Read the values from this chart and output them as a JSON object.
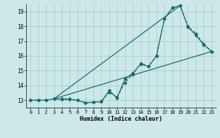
{
  "xlabel": "Humidex (Indice chaleur)",
  "bg_color": "#cce8e8",
  "grid_color": "#aacccc",
  "line_color": "#1a6b6b",
  "xlim": [
    -0.5,
    23.5
  ],
  "ylim": [
    12.5,
    19.5
  ],
  "yticks": [
    13,
    14,
    15,
    16,
    17,
    18,
    19
  ],
  "xticks": [
    0,
    1,
    2,
    3,
    4,
    5,
    6,
    7,
    8,
    9,
    10,
    11,
    12,
    13,
    14,
    15,
    16,
    17,
    18,
    19,
    20,
    21,
    22,
    23
  ],
  "curve1_x": [
    0,
    1,
    2,
    3,
    4,
    5,
    6,
    7,
    8,
    9,
    10,
    11,
    12,
    13,
    14,
    15,
    16,
    17,
    18,
    19,
    20,
    21,
    22,
    23
  ],
  "curve1_y": [
    13.0,
    13.0,
    13.0,
    13.1,
    13.1,
    13.1,
    13.0,
    12.82,
    12.87,
    12.9,
    13.55,
    13.2,
    14.2,
    14.75,
    15.5,
    15.3,
    16.0,
    18.5,
    19.25,
    19.4,
    18.0,
    17.5,
    16.8,
    16.3
  ],
  "curve2_x": [
    0,
    1,
    2,
    3,
    4,
    5,
    6,
    7,
    8,
    9,
    10,
    11,
    12,
    13,
    14,
    15,
    16,
    17,
    18,
    19,
    20,
    21,
    22,
    23
  ],
  "curve2_y": [
    13.0,
    13.0,
    13.0,
    13.1,
    13.05,
    13.05,
    13.0,
    12.82,
    12.87,
    12.9,
    13.65,
    13.15,
    14.45,
    14.82,
    15.45,
    15.28,
    16.0,
    18.5,
    19.25,
    19.4,
    17.95,
    17.4,
    16.75,
    16.3
  ],
  "line1_x": [
    3,
    23
  ],
  "line1_y": [
    13.1,
    16.3
  ],
  "line2_x": [
    3,
    19
  ],
  "line2_y": [
    13.1,
    19.4
  ]
}
